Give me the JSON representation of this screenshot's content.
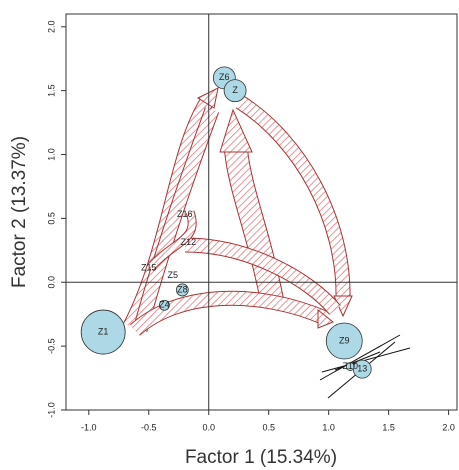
{
  "chart_data": {
    "type": "bubble",
    "x_label": "Factor 1 (15.34%)",
    "y_label": "Factor 2 (13.37%)",
    "xlim": [
      -1.19,
      2.07
    ],
    "ylim": [
      -1.0,
      2.1
    ],
    "xticks": [
      {
        "value": -1.0,
        "label": "-1.0"
      },
      -0.5,
      {
        "value": 0,
        "label": "0.0"
      },
      0.5,
      {
        "value": 1,
        "label": "1.0"
      },
      1.5,
      {
        "value": 2,
        "label": "2.0"
      }
    ],
    "yticks": [
      {
        "value": -1.0,
        "label": "-1.0"
      },
      -0.5,
      {
        "value": 0,
        "label": "0.0"
      },
      0.5,
      {
        "value": 1,
        "label": "1.0"
      },
      1.5,
      {
        "value": 2,
        "label": "2.0"
      }
    ],
    "color": "#add8e6",
    "points": [
      {
        "label": "Z1",
        "x": -0.88,
        "y": -0.39,
        "size": 22
      },
      {
        "label": "Z6",
        "x": 0.13,
        "y": 1.6,
        "size": 11
      },
      {
        "label": "Z",
        "x": 0.22,
        "y": 1.5,
        "size": 11
      },
      {
        "label": "Z9",
        "x": 1.13,
        "y": -0.46,
        "size": 18
      },
      {
        "label": "13",
        "x": 1.28,
        "y": -0.68,
        "size": 9
      },
      {
        "label": "Z10",
        "x": 1.18,
        "y": -0.66,
        "size": 4
      },
      {
        "label": "Z8",
        "x": -0.22,
        "y": -0.06,
        "size": 6
      },
      {
        "label": "Z4",
        "x": -0.37,
        "y": -0.18,
        "size": 5
      },
      {
        "label": "Z5",
        "x": -0.3,
        "y": 0.05,
        "size": 2
      },
      {
        "label": "Z15",
        "x": -0.5,
        "y": 0.11,
        "size": 1
      },
      {
        "label": "Z16",
        "x": -0.2,
        "y": 0.53,
        "size": 1
      },
      {
        "label": "Z12",
        "x": -0.17,
        "y": 0.31,
        "size": 2
      }
    ]
  }
}
